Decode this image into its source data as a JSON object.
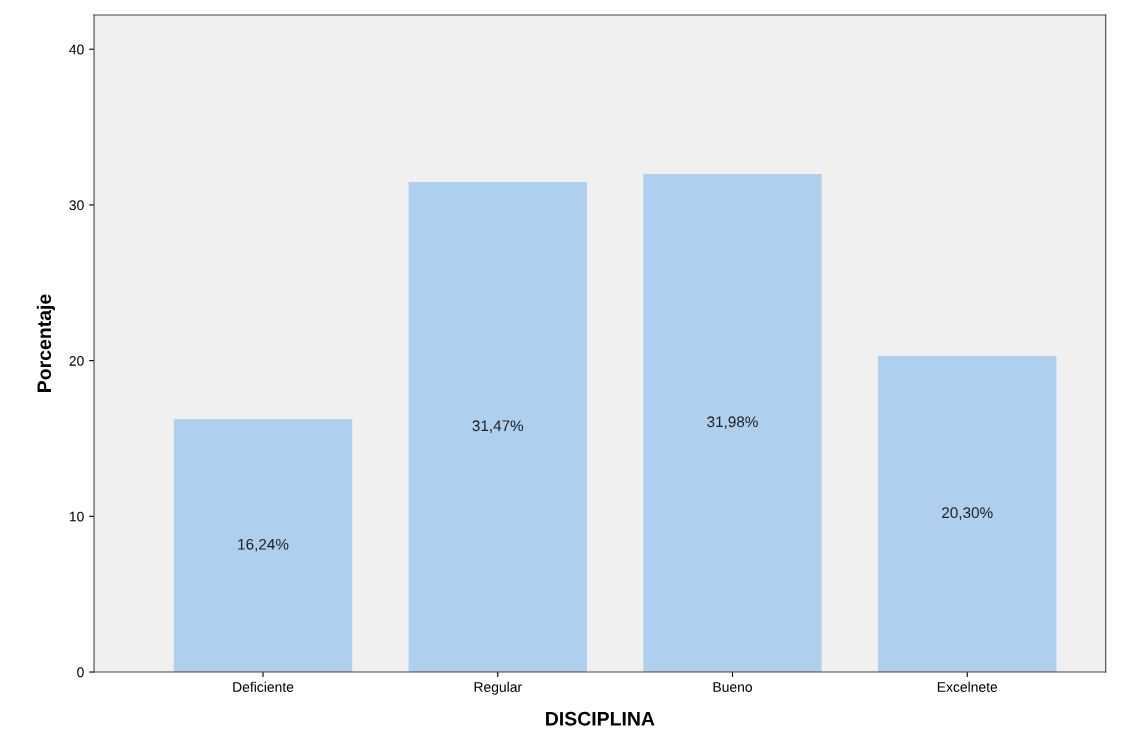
{
  "chart_data": {
    "type": "bar",
    "xlabel": "DISCIPLINA",
    "ylabel": "Porcentaje",
    "categories": [
      "Deficiente",
      "Regular",
      "Bueno",
      "Excelnete"
    ],
    "values": [
      16.24,
      31.47,
      31.98,
      20.3
    ],
    "value_labels": [
      "16,24%",
      "31,47%",
      "31,98%",
      "20,30%"
    ],
    "color": "#aecfed",
    "ylim": [
      0,
      42.2
    ],
    "yticks": [
      0,
      10,
      20,
      30,
      40
    ],
    "grid": false,
    "legend": false
  }
}
